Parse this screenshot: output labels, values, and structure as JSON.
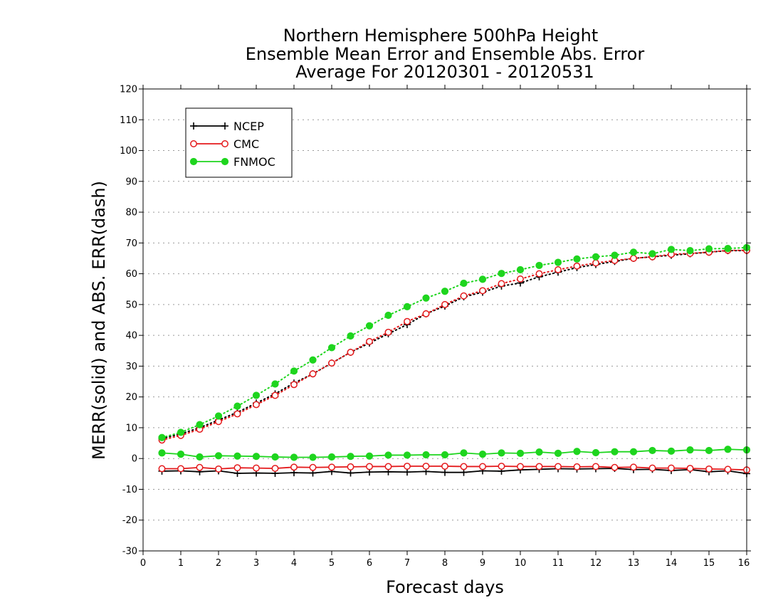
{
  "chart_data": {
    "type": "line",
    "title_lines": [
      "Northern Hemisphere 500hPa Height",
      "Ensemble Mean Error and Ensemble Abs. Error",
      "Average For 20120301 - 20120531"
    ],
    "xlabel": "Forecast days",
    "ylabel": "MERR(solid) and ABS. ERR(dash)",
    "xlim": [
      0,
      16
    ],
    "ylim": [
      -30,
      120
    ],
    "xticks": [
      0,
      1,
      2,
      3,
      4,
      5,
      6,
      7,
      8,
      9,
      10,
      11,
      12,
      13,
      14,
      15,
      16
    ],
    "yticks": [
      -30,
      -20,
      -10,
      0,
      10,
      20,
      30,
      40,
      50,
      60,
      70,
      80,
      90,
      100,
      110,
      120
    ],
    "grid": "horizontal dotted",
    "legend_position": "top-left",
    "x": [
      0.5,
      1,
      1.5,
      2,
      2.5,
      3,
      3.5,
      4,
      4.5,
      5,
      5.5,
      6,
      6.5,
      7,
      7.5,
      8,
      8.5,
      9,
      9.5,
      10,
      10.5,
      11,
      11.5,
      12,
      12.5,
      13,
      13.5,
      14,
      14.5,
      15,
      15.5,
      16
    ],
    "series": [
      {
        "name": "NCEP",
        "color": "#000000",
        "marker": "plus",
        "merr": [
          -4.1,
          -4.0,
          -4.3,
          -4.0,
          -4.8,
          -4.7,
          -4.8,
          -4.6,
          -4.7,
          -4.2,
          -4.7,
          -4.4,
          -4.3,
          -4.4,
          -4.2,
          -4.5,
          -4.5,
          -4.0,
          -4.1,
          -3.7,
          -3.5,
          -3.3,
          -3.4,
          -3.3,
          -3.2,
          -3.6,
          -3.5,
          -3.9,
          -3.6,
          -4.3,
          -4.0,
          -4.9
        ],
        "abs_err": [
          6.5,
          8.0,
          10.0,
          12.5,
          15.0,
          18.0,
          21.0,
          24.5,
          27.5,
          31.0,
          34.5,
          37.5,
          40.5,
          43.5,
          47.0,
          49.5,
          52.5,
          54.0,
          56.0,
          57.0,
          59.0,
          60.5,
          62.0,
          63.0,
          64.0,
          65.0,
          65.5,
          66.0,
          66.5,
          67.0,
          67.5,
          67.5
        ]
      },
      {
        "name": "CMC",
        "color": "#e41a1c",
        "marker": "open-circle",
        "merr": [
          -3.3,
          -3.3,
          -2.9,
          -3.4,
          -3.0,
          -3.1,
          -3.2,
          -2.8,
          -2.9,
          -2.8,
          -2.7,
          -2.6,
          -2.6,
          -2.5,
          -2.5,
          -2.5,
          -2.6,
          -2.6,
          -2.5,
          -2.6,
          -2.6,
          -2.6,
          -2.7,
          -2.6,
          -2.9,
          -2.8,
          -3.1,
          -3.1,
          -3.2,
          -3.4,
          -3.5,
          -3.7
        ],
        "abs_err": [
          6.0,
          7.5,
          9.5,
          12.0,
          14.5,
          17.5,
          20.5,
          24.0,
          27.5,
          31.0,
          34.5,
          38.0,
          41.0,
          44.5,
          47.0,
          50.0,
          52.8,
          54.5,
          56.8,
          58.3,
          60.0,
          61.3,
          62.5,
          63.5,
          64.3,
          65.0,
          65.5,
          66.3,
          66.6,
          67.0,
          67.6,
          67.6
        ]
      },
      {
        "name": "FNMOC",
        "color": "#1ed51e",
        "marker": "filled-circle",
        "merr": [
          1.8,
          1.4,
          0.5,
          0.9,
          0.8,
          0.7,
          0.5,
          0.4,
          0.4,
          0.5,
          0.7,
          0.8,
          1.1,
          1.1,
          1.2,
          1.2,
          1.8,
          1.4,
          1.8,
          1.7,
          2.1,
          1.7,
          2.3,
          1.9,
          2.2,
          2.2,
          2.6,
          2.4,
          2.8,
          2.6,
          3.0,
          2.8
        ],
        "abs_err": [
          6.8,
          8.5,
          11.0,
          13.8,
          17.0,
          20.5,
          24.2,
          28.4,
          32.0,
          36.0,
          39.8,
          43.1,
          46.5,
          49.3,
          52.1,
          54.3,
          56.9,
          58.2,
          60.1,
          61.3,
          62.7,
          63.7,
          64.8,
          65.5,
          66.0,
          67.0,
          66.5,
          67.9,
          67.5,
          68.1,
          68.2,
          68.5
        ]
      }
    ]
  }
}
